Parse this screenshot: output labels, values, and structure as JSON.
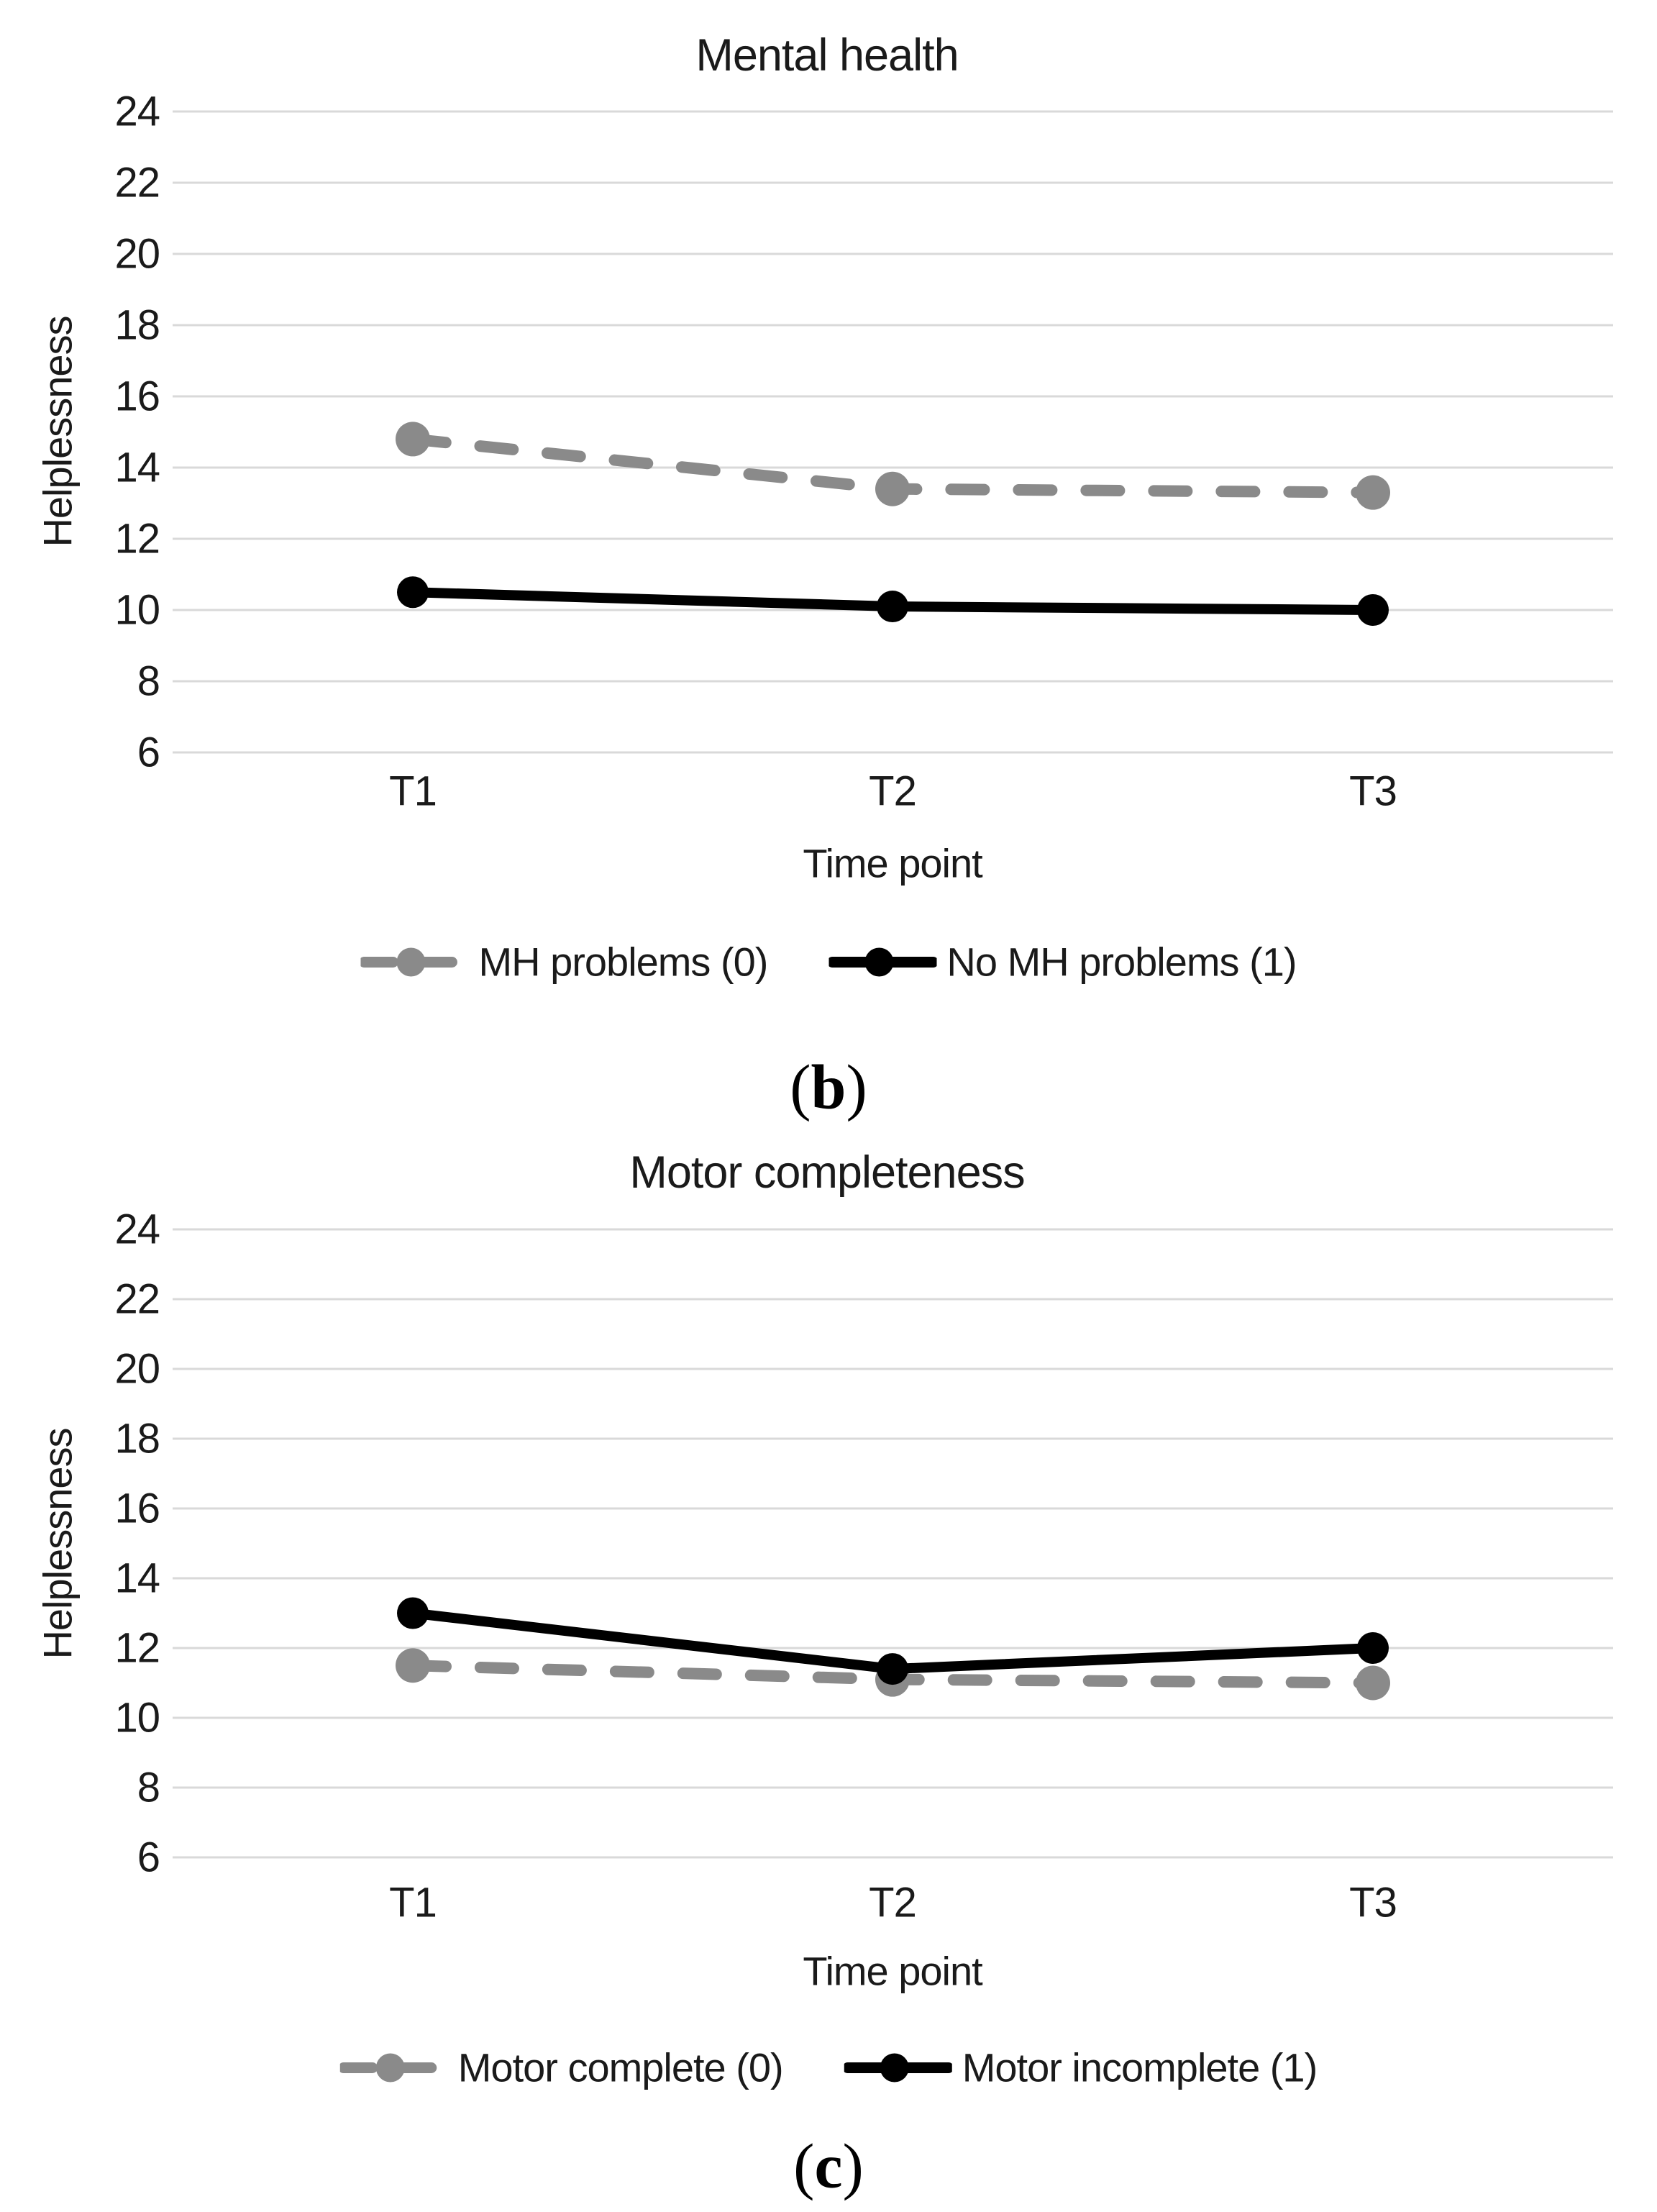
{
  "figure": {
    "background": "#ffffff",
    "text_color": "#1a1a1a",
    "gridline_color": "#d9d9d9",
    "panel_labels": [
      "(b)",
      "(c)"
    ]
  },
  "chart_data": [
    {
      "type": "line",
      "title": "Mental health",
      "xlabel": "Time point",
      "ylabel": "Helplessness",
      "categories": [
        "T1",
        "T2",
        "T3"
      ],
      "yticks": [
        24,
        22,
        20,
        18,
        16,
        14,
        12,
        10,
        8,
        6
      ],
      "ylim": [
        6,
        24
      ],
      "grid": true,
      "legend_position": "bottom",
      "panel_label": "(b)",
      "series": [
        {
          "name": "MH problems (0)",
          "values": [
            14.8,
            13.4,
            13.3
          ],
          "color": "#8a8a8a",
          "line_style": "dashed",
          "marker": "circle"
        },
        {
          "name": "No MH problems (1)",
          "values": [
            10.5,
            10.1,
            10.0
          ],
          "color": "#000000",
          "line_style": "solid",
          "marker": "circle"
        }
      ]
    },
    {
      "type": "line",
      "title": "Motor completeness",
      "xlabel": "Time point",
      "ylabel": "Helplessness",
      "categories": [
        "T1",
        "T2",
        "T3"
      ],
      "yticks": [
        24,
        22,
        20,
        18,
        16,
        14,
        12,
        10,
        8,
        6
      ],
      "ylim": [
        6,
        24
      ],
      "grid": true,
      "legend_position": "bottom",
      "panel_label": "(c)",
      "series": [
        {
          "name": "Motor complete (0)",
          "values": [
            11.5,
            11.1,
            11.0
          ],
          "color": "#8a8a8a",
          "line_style": "dashed",
          "marker": "circle"
        },
        {
          "name": "Motor incomplete (1)",
          "values": [
            13.0,
            11.4,
            12.0
          ],
          "color": "#000000",
          "line_style": "solid",
          "marker": "circle"
        }
      ]
    }
  ]
}
